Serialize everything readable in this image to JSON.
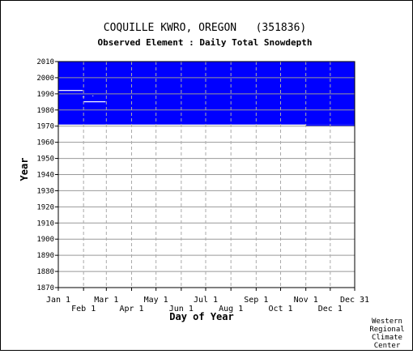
{
  "chart_data": {
    "type": "heatmap",
    "title": "COQUILLE KWRO, OREGON   (351836)",
    "subtitle": "Observed Element : Daily Total Snowdepth",
    "xlabel": "Day of Year",
    "ylabel": "Year",
    "xlim": [
      1,
      365
    ],
    "ylim": [
      1870,
      2010
    ],
    "x_ticks_upper": [
      {
        "label": "Jan 1",
        "day": 1
      },
      {
        "label": "Mar 1",
        "day": 60
      },
      {
        "label": "May 1",
        "day": 121
      },
      {
        "label": "Jul 1",
        "day": 182
      },
      {
        "label": "Sep 1",
        "day": 244
      },
      {
        "label": "Nov 1",
        "day": 305
      },
      {
        "label": "Dec 31",
        "day": 365
      }
    ],
    "x_ticks_lower": [
      {
        "label": "Feb 1",
        "day": 32
      },
      {
        "label": "Apr 1",
        "day": 91
      },
      {
        "label": "Jun 1",
        "day": 152
      },
      {
        "label": "Aug 1",
        "day": 213
      },
      {
        "label": "Oct 1",
        "day": 274
      },
      {
        "label": "Dec 1",
        "day": 335
      }
    ],
    "y_ticks": [
      2010,
      2000,
      1990,
      1980,
      1970,
      1960,
      1950,
      1940,
      1930,
      1920,
      1910,
      1900,
      1890,
      1880,
      1870
    ],
    "grid": true,
    "fill_color": "#0000ff",
    "data_regions": [
      {
        "day_start": 1,
        "day_end": 365,
        "year_start": 1971,
        "year_end": 2010
      },
      {
        "day_start": 305,
        "day_end": 365,
        "year_start": 1970,
        "year_end": 1971
      }
    ],
    "missing_regions": [
      {
        "day_start": 1,
        "day_end": 31,
        "year_start": 1991.8,
        "year_end": 1992.4
      },
      {
        "day_start": 32,
        "day_end": 59,
        "year_start": 1984.8,
        "year_end": 1985.4
      },
      {
        "day_start": 31,
        "day_end": 33,
        "year_start": 1987.8,
        "year_end": 1988.4
      },
      {
        "day_start": 43,
        "day_end": 44,
        "year_start": 1988.5,
        "year_end": 1989
      }
    ]
  },
  "credit": [
    "Western",
    "Regional",
    "Climate",
    "Center"
  ]
}
